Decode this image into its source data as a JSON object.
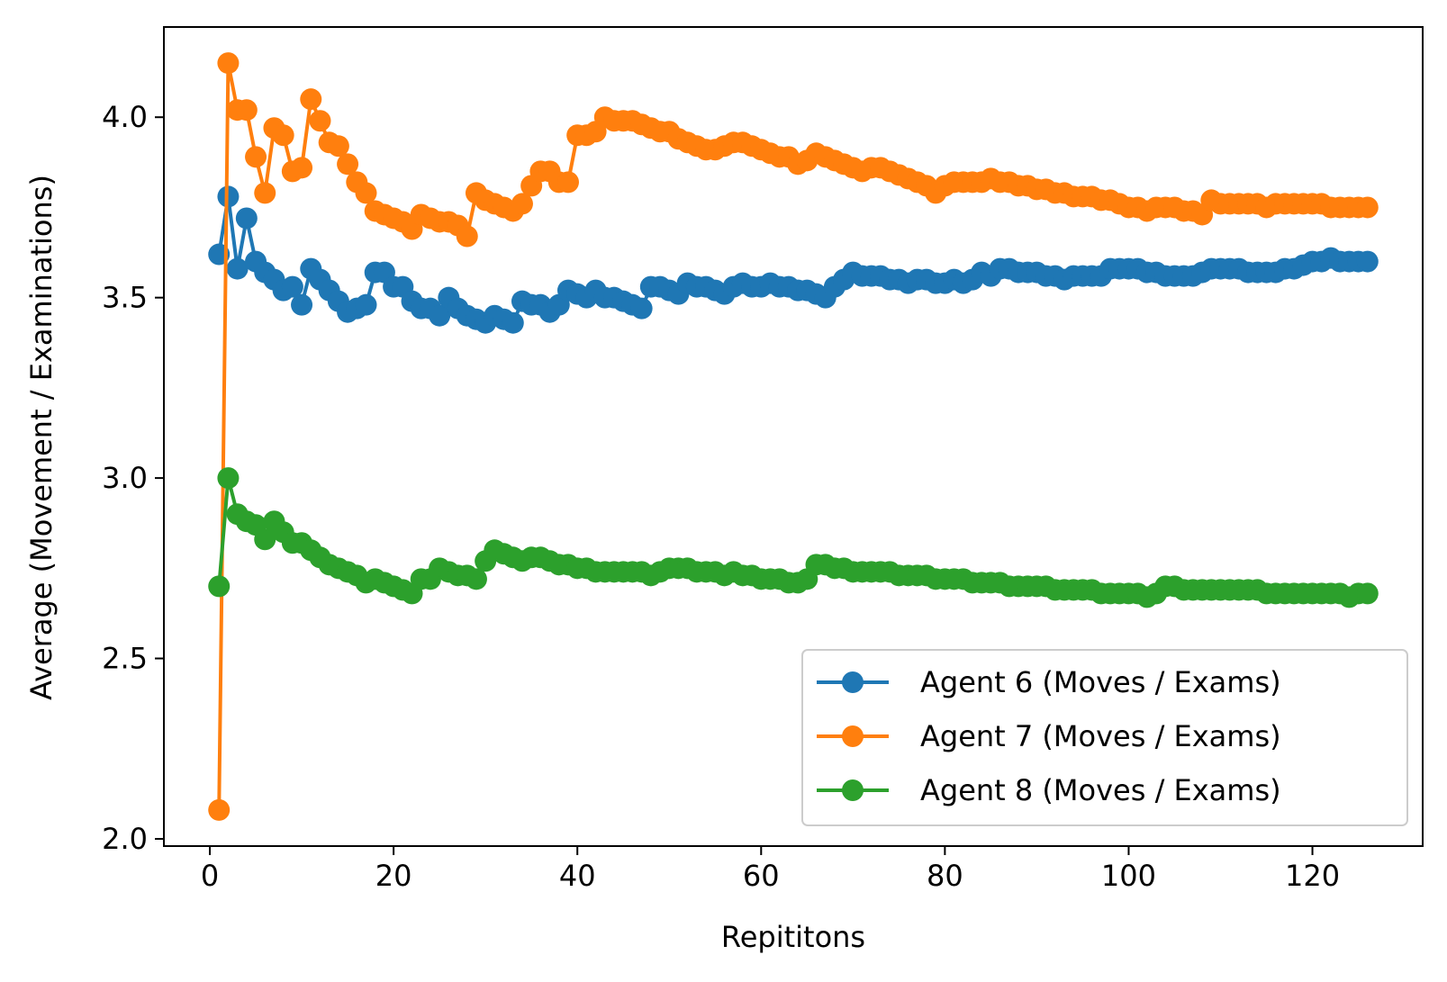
{
  "chart_data": {
    "type": "line",
    "title": "",
    "xlabel": "Repititons",
    "ylabel": "Average (Movement / Examinations)",
    "xlim": [
      -5,
      132
    ],
    "ylim": [
      1.98,
      4.25
    ],
    "xticks": [
      0,
      20,
      40,
      60,
      80,
      100,
      120
    ],
    "xtick_labels": [
      "0",
      "20",
      "40",
      "60",
      "80",
      "100",
      "120"
    ],
    "yticks": [
      2.0,
      2.5,
      3.0,
      3.5,
      4.0
    ],
    "ytick_labels": [
      "2.0",
      "2.5",
      "3.0",
      "3.5",
      "4.0"
    ],
    "grid": false,
    "legend_position": "lower-right",
    "markers": "circle",
    "x": [
      1,
      2,
      3,
      4,
      5,
      6,
      7,
      8,
      9,
      10,
      11,
      12,
      13,
      14,
      15,
      16,
      17,
      18,
      19,
      20,
      21,
      22,
      23,
      24,
      25,
      26,
      27,
      28,
      29,
      30,
      31,
      32,
      33,
      34,
      35,
      36,
      37,
      38,
      39,
      40,
      41,
      42,
      43,
      44,
      45,
      46,
      47,
      48,
      49,
      50,
      51,
      52,
      53,
      54,
      55,
      56,
      57,
      58,
      59,
      60,
      61,
      62,
      63,
      64,
      65,
      66,
      67,
      68,
      69,
      70,
      71,
      72,
      73,
      74,
      75,
      76,
      77,
      78,
      79,
      80,
      81,
      82,
      83,
      84,
      85,
      86,
      87,
      88,
      89,
      90,
      91,
      92,
      93,
      94,
      95,
      96,
      97,
      98,
      99,
      100,
      101,
      102,
      103,
      104,
      105,
      106,
      107,
      108,
      109,
      110,
      111,
      112,
      113,
      114,
      115,
      116,
      117,
      118,
      119,
      120,
      121,
      122,
      123,
      124,
      125,
      126
    ],
    "series": [
      {
        "name": "Agent 6 (Moves / Exams)",
        "color": "#1f77b4",
        "values": [
          3.62,
          3.78,
          3.58,
          3.72,
          3.6,
          3.57,
          3.55,
          3.52,
          3.53,
          3.48,
          3.58,
          3.55,
          3.52,
          3.49,
          3.46,
          3.47,
          3.48,
          3.57,
          3.57,
          3.53,
          3.53,
          3.49,
          3.47,
          3.47,
          3.45,
          3.5,
          3.47,
          3.45,
          3.44,
          3.43,
          3.45,
          3.44,
          3.43,
          3.49,
          3.48,
          3.48,
          3.46,
          3.48,
          3.52,
          3.51,
          3.5,
          3.52,
          3.5,
          3.5,
          3.49,
          3.48,
          3.47,
          3.53,
          3.53,
          3.52,
          3.51,
          3.54,
          3.53,
          3.53,
          3.52,
          3.51,
          3.53,
          3.54,
          3.53,
          3.53,
          3.54,
          3.53,
          3.53,
          3.52,
          3.52,
          3.51,
          3.5,
          3.53,
          3.55,
          3.57,
          3.56,
          3.56,
          3.56,
          3.55,
          3.55,
          3.54,
          3.55,
          3.55,
          3.54,
          3.54,
          3.55,
          3.54,
          3.55,
          3.57,
          3.56,
          3.58,
          3.58,
          3.57,
          3.57,
          3.57,
          3.56,
          3.56,
          3.55,
          3.56,
          3.56,
          3.56,
          3.56,
          3.58,
          3.58,
          3.58,
          3.58,
          3.57,
          3.57,
          3.56,
          3.56,
          3.56,
          3.56,
          3.57,
          3.58,
          3.58,
          3.58,
          3.58,
          3.57,
          3.57,
          3.57,
          3.57,
          3.58,
          3.58,
          3.59,
          3.6,
          3.6,
          3.61,
          3.6,
          3.6,
          3.6,
          3.6
        ]
      },
      {
        "name": "Agent 7 (Moves / Exams)",
        "color": "#ff7f0e",
        "values": [
          2.08,
          4.15,
          4.02,
          4.02,
          3.89,
          3.79,
          3.97,
          3.95,
          3.85,
          3.86,
          4.05,
          3.99,
          3.93,
          3.92,
          3.87,
          3.82,
          3.79,
          3.74,
          3.73,
          3.72,
          3.71,
          3.69,
          3.73,
          3.72,
          3.71,
          3.71,
          3.7,
          3.67,
          3.79,
          3.77,
          3.76,
          3.75,
          3.74,
          3.76,
          3.81,
          3.85,
          3.85,
          3.82,
          3.82,
          3.95,
          3.95,
          3.96,
          4.0,
          3.99,
          3.99,
          3.99,
          3.98,
          3.97,
          3.96,
          3.96,
          3.94,
          3.93,
          3.92,
          3.91,
          3.91,
          3.92,
          3.93,
          3.93,
          3.92,
          3.91,
          3.9,
          3.89,
          3.89,
          3.87,
          3.88,
          3.9,
          3.89,
          3.88,
          3.87,
          3.86,
          3.85,
          3.86,
          3.86,
          3.85,
          3.84,
          3.83,
          3.82,
          3.81,
          3.79,
          3.81,
          3.82,
          3.82,
          3.82,
          3.82,
          3.83,
          3.82,
          3.82,
          3.81,
          3.81,
          3.8,
          3.8,
          3.79,
          3.79,
          3.78,
          3.78,
          3.78,
          3.77,
          3.77,
          3.76,
          3.75,
          3.75,
          3.74,
          3.75,
          3.75,
          3.75,
          3.74,
          3.74,
          3.73,
          3.77,
          3.76,
          3.76,
          3.76,
          3.76,
          3.76,
          3.75,
          3.76,
          3.76,
          3.76,
          3.76,
          3.76,
          3.76,
          3.75,
          3.75,
          3.75,
          3.75,
          3.75
        ]
      },
      {
        "name": "Agent 8 (Moves / Exams)",
        "color": "#2ca02c",
        "values": [
          2.7,
          3.0,
          2.9,
          2.88,
          2.87,
          2.83,
          2.88,
          2.85,
          2.82,
          2.82,
          2.8,
          2.78,
          2.76,
          2.75,
          2.74,
          2.73,
          2.71,
          2.72,
          2.71,
          2.7,
          2.69,
          2.68,
          2.72,
          2.72,
          2.75,
          2.74,
          2.73,
          2.73,
          2.72,
          2.77,
          2.8,
          2.79,
          2.78,
          2.77,
          2.78,
          2.78,
          2.77,
          2.76,
          2.76,
          2.75,
          2.75,
          2.74,
          2.74,
          2.74,
          2.74,
          2.74,
          2.74,
          2.73,
          2.74,
          2.75,
          2.75,
          2.75,
          2.74,
          2.74,
          2.74,
          2.73,
          2.74,
          2.73,
          2.73,
          2.72,
          2.72,
          2.72,
          2.71,
          2.71,
          2.72,
          2.76,
          2.76,
          2.75,
          2.75,
          2.74,
          2.74,
          2.74,
          2.74,
          2.74,
          2.73,
          2.73,
          2.73,
          2.73,
          2.72,
          2.72,
          2.72,
          2.72,
          2.71,
          2.71,
          2.71,
          2.71,
          2.7,
          2.7,
          2.7,
          2.7,
          2.7,
          2.69,
          2.69,
          2.69,
          2.69,
          2.69,
          2.68,
          2.68,
          2.68,
          2.68,
          2.68,
          2.67,
          2.68,
          2.7,
          2.7,
          2.69,
          2.69,
          2.69,
          2.69,
          2.69,
          2.69,
          2.69,
          2.69,
          2.69,
          2.68,
          2.68,
          2.68,
          2.68,
          2.68,
          2.68,
          2.68,
          2.68,
          2.68,
          2.67,
          2.68,
          2.68
        ]
      }
    ]
  }
}
